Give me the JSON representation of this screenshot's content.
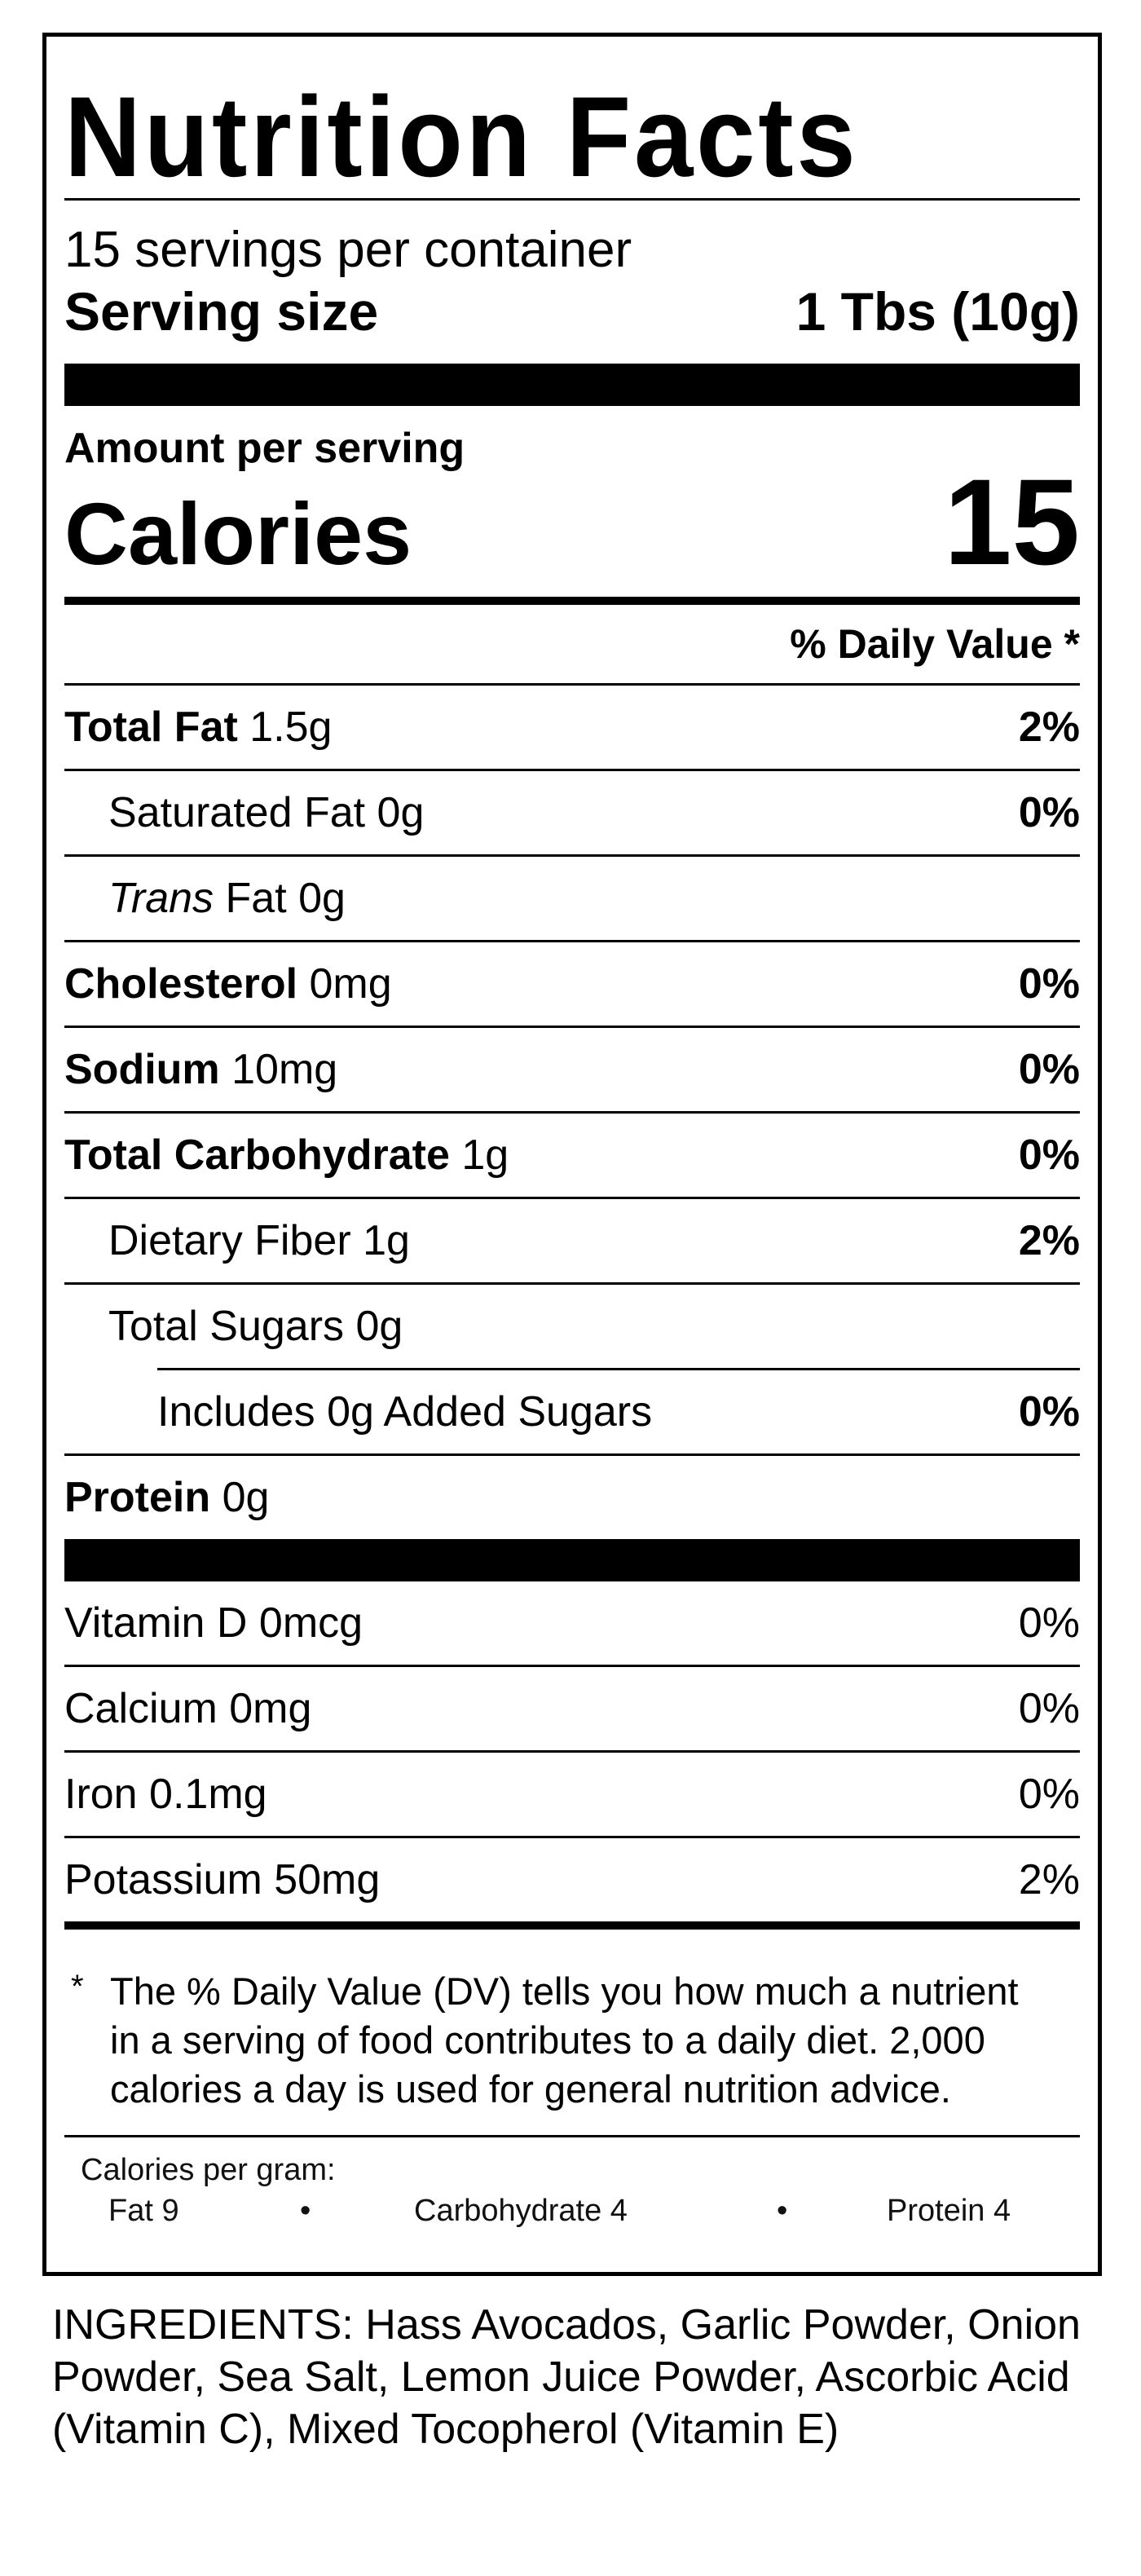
{
  "label": {
    "title": "Nutrition Facts",
    "servings_per_container": "15 servings per container",
    "serving_size_label": "Serving size",
    "serving_size_value": "1 Tbs (10g)",
    "amount_per_serving": "Amount per serving",
    "calories_label": "Calories",
    "calories_value": "15",
    "daily_value_header": "% Daily Value *"
  },
  "nutrients": {
    "total_fat": {
      "name": "Total Fat",
      "amount": "1.5g",
      "dv": "2%"
    },
    "saturated_fat": {
      "name": "Saturated Fat",
      "amount": "0g",
      "dv": "0%"
    },
    "trans_fat": {
      "name_italic": "Trans",
      "name": "Fat",
      "amount": "0g"
    },
    "cholesterol": {
      "name": "Cholesterol",
      "amount": "0mg",
      "dv": "0%"
    },
    "sodium": {
      "name": "Sodium",
      "amount": "10mg",
      "dv": "0%"
    },
    "total_carbohydrate": {
      "name": "Total Carbohydrate",
      "amount": "1g",
      "dv": "0%"
    },
    "dietary_fiber": {
      "name": "Dietary Fiber",
      "amount": "1g",
      "dv": "2%"
    },
    "total_sugars": {
      "name": "Total Sugars",
      "amount": "0g"
    },
    "added_sugars": {
      "name": "Includes 0g Added Sugars",
      "dv": "0%"
    },
    "protein": {
      "name": "Protein",
      "amount": "0g"
    }
  },
  "vitamins": [
    {
      "name": "Vitamin D 0mcg",
      "dv": "0%"
    },
    {
      "name": "Calcium 0mg",
      "dv": "0%"
    },
    {
      "name": "Iron 0.1mg",
      "dv": "0%"
    },
    {
      "name": "Potassium 50mg",
      "dv": "2%"
    }
  ],
  "footnote": {
    "star": "*",
    "text": "The % Daily Value (DV) tells you how much a nutrient in a serving of food contributes to a daily diet. 2,000 calories a day is used for general nutrition advice."
  },
  "calories_per_gram": {
    "title": "Calories per gram:",
    "fat": "Fat 9",
    "carbohydrate": "Carbohydrate 4",
    "protein": "Protein 4",
    "separator": "•"
  },
  "ingredients": "INGREDIENTS: Hass Avocados, Garlic Powder, Onion Powder, Sea Salt, Lemon Juice Powder, Ascorbic Acid (Vitamin C), Mixed Tocopherol (Vitamin E)"
}
